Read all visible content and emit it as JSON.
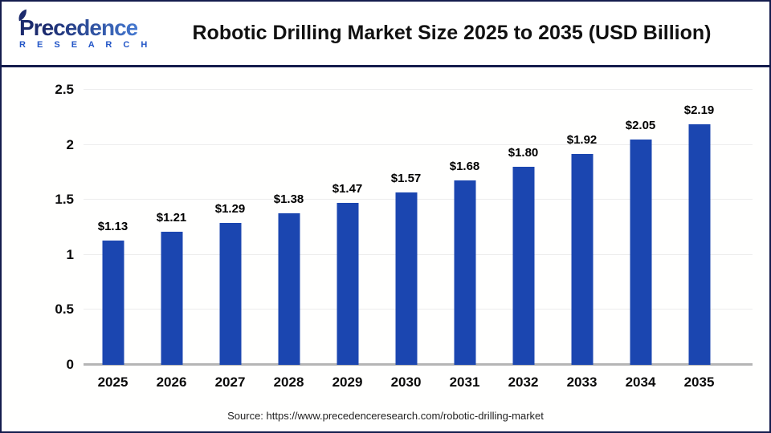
{
  "header": {
    "logo": {
      "wordmark": "Precedence",
      "subtitle": "R E S E A R C H"
    },
    "title": "Robotic Drilling Market Size 2025 to 2035 (USD Billion)"
  },
  "chart_data": {
    "type": "bar",
    "title": "Robotic Drilling Market Size 2025 to 2035 (USD Billion)",
    "categories": [
      "2025",
      "2026",
      "2027",
      "2028",
      "2029",
      "2030",
      "2031",
      "2032",
      "2033",
      "2034",
      "2035"
    ],
    "values": [
      1.13,
      1.21,
      1.29,
      1.38,
      1.47,
      1.57,
      1.68,
      1.8,
      1.92,
      2.05,
      2.19
    ],
    "value_labels": [
      "$1.13",
      "$1.21",
      "$1.29",
      "$1.38",
      "$1.47",
      "$1.57",
      "$1.68",
      "$1.80",
      "$1.92",
      "$2.05",
      "$2.19"
    ],
    "xlabel": "",
    "ylabel": "",
    "ylim": [
      0,
      2.5
    ],
    "yticks": [
      0,
      0.5,
      1,
      1.5,
      2,
      2.5
    ],
    "ytick_labels": [
      "0",
      "0.5",
      "1",
      "1.5",
      "2",
      "2.5"
    ],
    "grid": true,
    "legend": false,
    "unit": "USD Billion",
    "bar_color": "#1b46b0"
  },
  "footer": {
    "source": "Source: https://www.precedenceresearch.com/robotic-drilling-market"
  },
  "colors": {
    "accent_navy": "#141c4d",
    "bar_blue": "#1b46b0",
    "logo_blue": "#2356c7",
    "gridline": "#ededed",
    "axis_line": "#b5b5b5"
  }
}
